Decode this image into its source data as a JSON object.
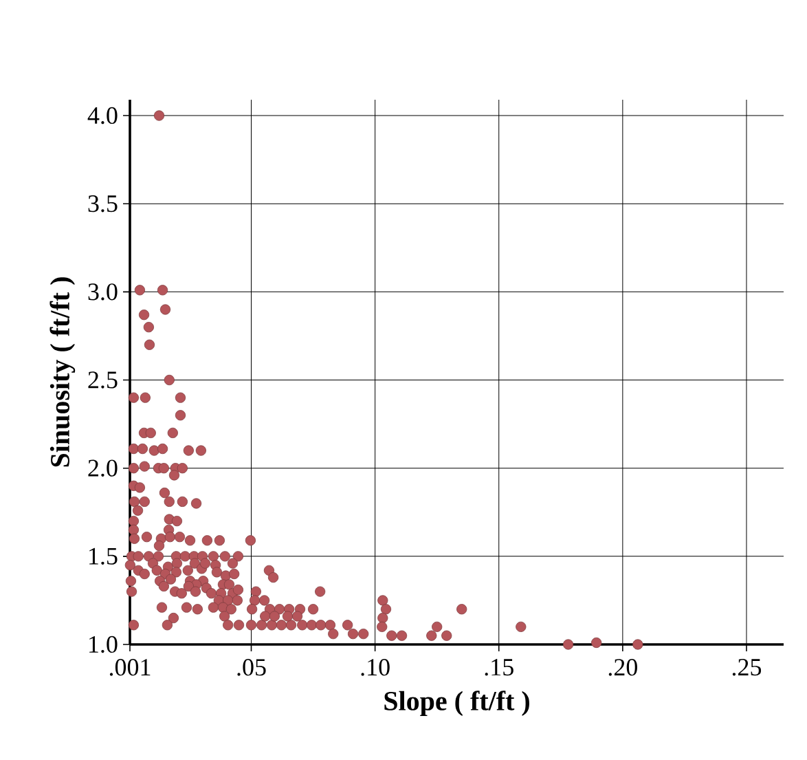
{
  "chart_data": {
    "type": "scatter",
    "xlabel": "Slope ( ft/ft )",
    "ylabel": "Sinuosity ( ft/ft )",
    "xlim": [
      0.001,
      0.265
    ],
    "ylim": [
      1.0,
      4.09
    ],
    "xticks": [
      {
        "value": 0.001,
        "label": ".001"
      },
      {
        "value": 0.05,
        "label": ".05"
      },
      {
        "value": 0.1,
        "label": ".10"
      },
      {
        "value": 0.15,
        "label": ".15"
      },
      {
        "value": 0.2,
        "label": ".20"
      },
      {
        "value": 0.25,
        "label": ".25"
      }
    ],
    "yticks": [
      {
        "value": 1.0,
        "label": "1.0"
      },
      {
        "value": 1.5,
        "label": "1.5"
      },
      {
        "value": 2.0,
        "label": "2.0"
      },
      {
        "value": 2.5,
        "label": "2.5"
      },
      {
        "value": 3.0,
        "label": "3.0"
      },
      {
        "value": 3.5,
        "label": "3.5"
      },
      {
        "value": 4.0,
        "label": "4.0"
      }
    ],
    "grid": true,
    "marker": "circle",
    "color": "#b5555a",
    "x": [
      0.0128,
      0.005,
      0.0142,
      0.0067,
      0.0153,
      0.0086,
      0.0089,
      0.0169,
      0.0025,
      0.0072,
      0.0214,
      0.0214,
      0.0067,
      0.0094,
      0.0183,
      0.0025,
      0.0061,
      0.0108,
      0.0142,
      0.0247,
      0.0297,
      0.0025,
      0.0069,
      0.0125,
      0.0147,
      0.0194,
      0.0222,
      0.0189,
      0.0025,
      0.005,
      0.015,
      0.0169,
      0.0028,
      0.0069,
      0.0222,
      0.0278,
      0.0042,
      0.0025,
      0.0169,
      0.02,
      0.0025,
      0.0167,
      0.0028,
      0.0078,
      0.0136,
      0.0172,
      0.0211,
      0.0253,
      0.0322,
      0.0372,
      0.0497,
      0.0128,
      0.0017,
      0.0044,
      0.0086,
      0.0125,
      0.0197,
      0.0233,
      0.0269,
      0.0303,
      0.0347,
      0.0394,
      0.0447,
      0.0011,
      0.0044,
      0.0069,
      0.0103,
      0.0119,
      0.0164,
      0.02,
      0.0197,
      0.0244,
      0.0272,
      0.03,
      0.0314,
      0.0356,
      0.0361,
      0.0425,
      0.0397,
      0.0431,
      0.0014,
      0.0017,
      0.0153,
      0.0131,
      0.0175,
      0.0253,
      0.0306,
      0.0278,
      0.0247,
      0.0147,
      0.0192,
      0.0219,
      0.0275,
      0.0319,
      0.0339,
      0.0386,
      0.0411,
      0.0378,
      0.0425,
      0.0447,
      0.0369,
      0.0406,
      0.0444,
      0.0139,
      0.0239,
      0.0283,
      0.0347,
      0.0386,
      0.0419,
      0.0392,
      0.0186,
      0.0161,
      0.0025,
      0.0406,
      0.045,
      0.05,
      0.0542,
      0.0583,
      0.0622,
      0.0661,
      0.0706,
      0.0744,
      0.0781,
      0.0819,
      0.0831,
      0.0889,
      0.0911,
      0.0953,
      0.0572,
      0.0589,
      0.0519,
      0.0514,
      0.0503,
      0.0553,
      0.0575,
      0.0614,
      0.0653,
      0.0697,
      0.075,
      0.0556,
      0.0594,
      0.0647,
      0.0686,
      0.0778,
      0.1031,
      0.1044,
      0.1031,
      0.1028,
      0.1067,
      0.1108,
      0.1228,
      0.125,
      0.1289,
      0.135,
      0.1589,
      0.178,
      0.1894,
      0.2061
    ],
    "values": [
      4.0,
      3.01,
      3.01,
      2.87,
      2.9,
      2.8,
      2.7,
      2.5,
      2.4,
      2.4,
      2.4,
      2.3,
      2.2,
      2.2,
      2.2,
      2.11,
      2.11,
      2.1,
      2.11,
      2.1,
      2.1,
      2.0,
      2.01,
      2.0,
      2.0,
      2.0,
      2.0,
      1.96,
      1.9,
      1.89,
      1.86,
      1.81,
      1.81,
      1.81,
      1.81,
      1.8,
      1.76,
      1.7,
      1.71,
      1.7,
      1.65,
      1.65,
      1.6,
      1.61,
      1.6,
      1.61,
      1.61,
      1.59,
      1.59,
      1.59,
      1.59,
      1.56,
      1.5,
      1.5,
      1.5,
      1.5,
      1.5,
      1.5,
      1.5,
      1.5,
      1.5,
      1.5,
      1.5,
      1.45,
      1.42,
      1.4,
      1.46,
      1.42,
      1.44,
      1.46,
      1.41,
      1.42,
      1.46,
      1.43,
      1.46,
      1.45,
      1.41,
      1.46,
      1.39,
      1.4,
      1.36,
      1.3,
      1.4,
      1.36,
      1.37,
      1.36,
      1.36,
      1.34,
      1.33,
      1.33,
      1.3,
      1.29,
      1.3,
      1.32,
      1.29,
      1.34,
      1.34,
      1.29,
      1.29,
      1.31,
      1.25,
      1.25,
      1.25,
      1.21,
      1.21,
      1.2,
      1.21,
      1.21,
      1.2,
      1.16,
      1.15,
      1.11,
      1.11,
      1.11,
      1.11,
      1.11,
      1.11,
      1.11,
      1.11,
      1.11,
      1.11,
      1.11,
      1.11,
      1.11,
      1.06,
      1.11,
      1.06,
      1.06,
      1.42,
      1.38,
      1.3,
      1.25,
      1.2,
      1.25,
      1.2,
      1.2,
      1.2,
      1.2,
      1.2,
      1.16,
      1.16,
      1.16,
      1.16,
      1.3,
      1.25,
      1.2,
      1.15,
      1.1,
      1.05,
      1.05,
      1.05,
      1.1,
      1.05,
      1.2,
      1.1,
      1.0,
      1.01,
      1.0
    ]
  }
}
